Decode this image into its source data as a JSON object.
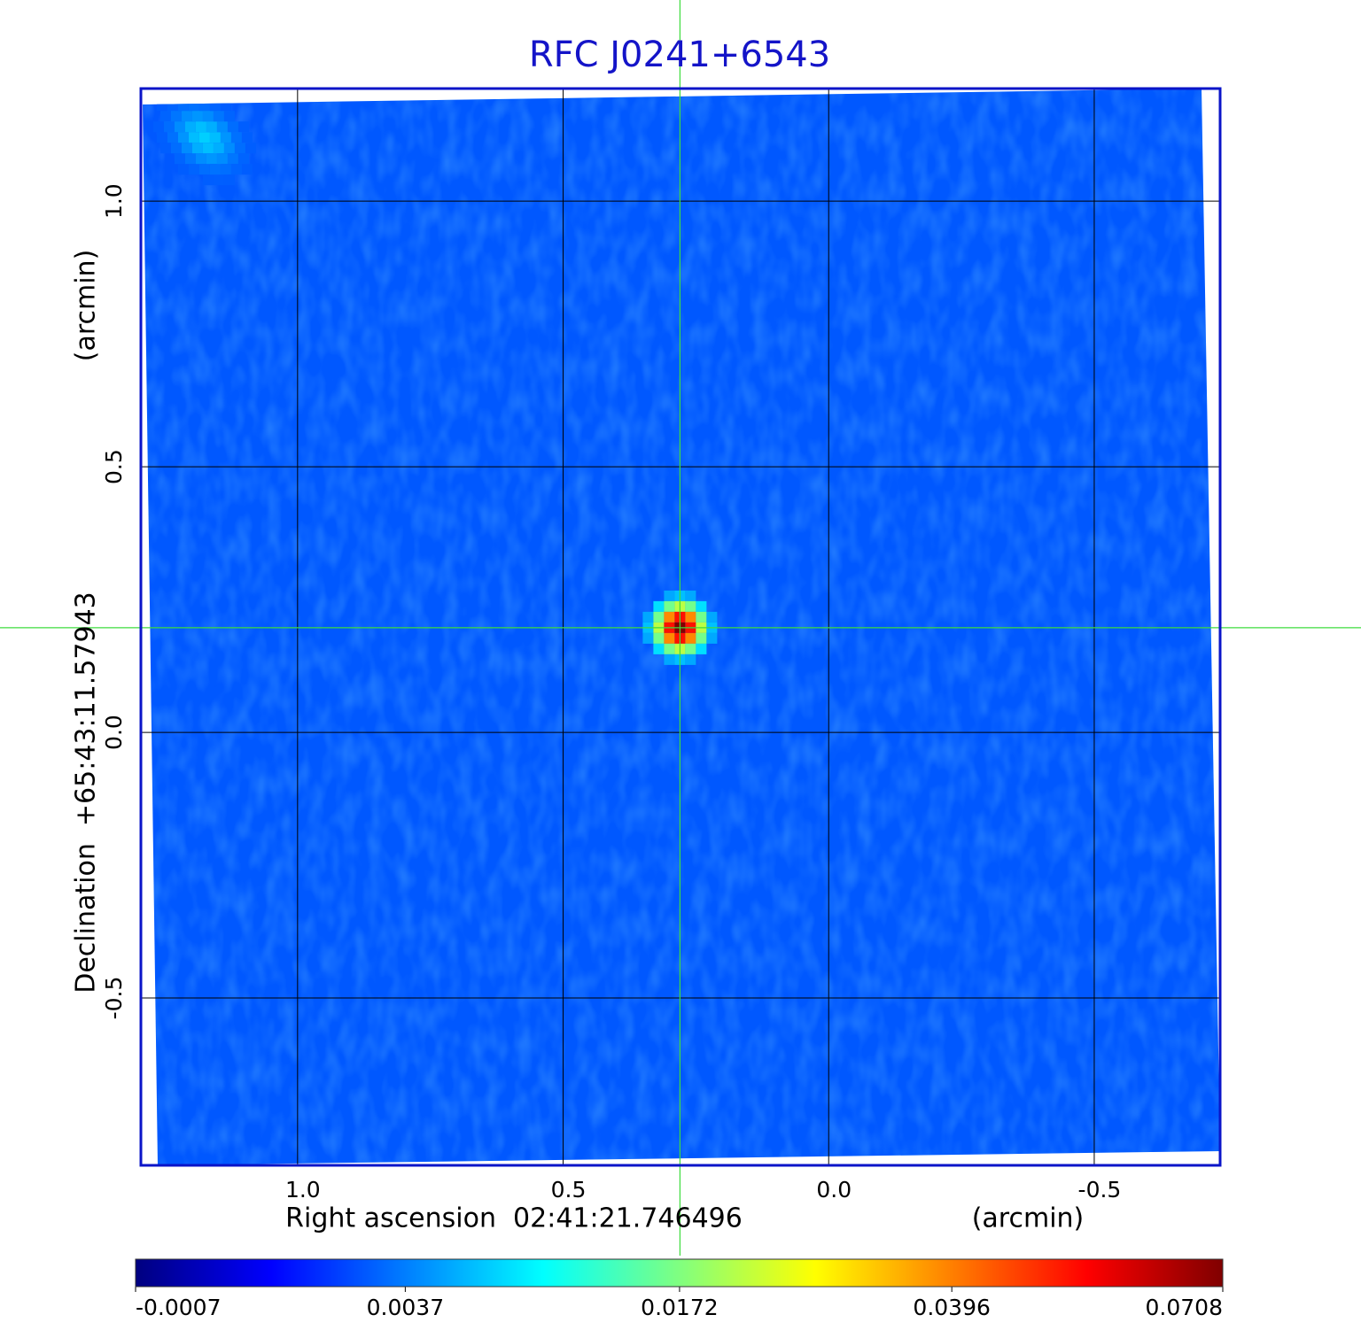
{
  "chart_data": {
    "type": "image",
    "title": "RFC J0241+6543",
    "x_label": "Right ascension  02:41:21.746496",
    "x_unit": "(arcmin)",
    "y_label": "Declination  +65:43:11.57943",
    "y_unit": "(arcmin)",
    "xlim": [
      1.295,
      -0.737
    ],
    "ylim": [
      -0.815,
      1.212
    ],
    "xticks": [
      {
        "value": 1,
        "label": "1.0"
      },
      0.5,
      {
        "value": 0,
        "label": "0.0"
      },
      -0.5
    ],
    "yticks": [
      -0.5,
      {
        "value": 0,
        "label": "0.0"
      },
      0.5,
      {
        "value": 1,
        "label": "1.0"
      }
    ],
    "grid": true,
    "colormap": "jet",
    "colorbar_scale": "sqrt",
    "colorbar_lim": [
      -0.0007,
      0.0708
    ],
    "colorbar_ticks": [
      -0.0007,
      0.0037,
      0.0172,
      0.0396,
      0.0708
    ],
    "background_level": 0.0025,
    "sources": [
      {
        "x": 0.28,
        "y": 0.197,
        "peak": 0.0708
      },
      {
        "x": 1.175,
        "y": 1.12,
        "peak": 0.007
      }
    ]
  }
}
